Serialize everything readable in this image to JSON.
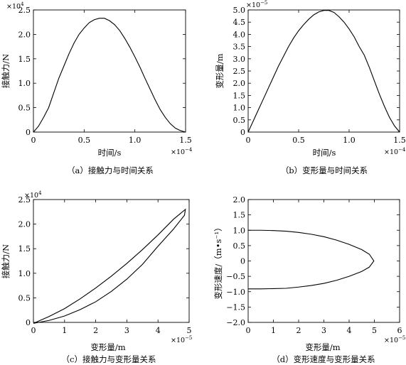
{
  "chart_data": [
    {
      "id": "a",
      "type": "line",
      "caption": "（a）接触力与时间关系",
      "xlabel": "时间/s",
      "ylabel": "接触力/N",
      "x_multiplier": {
        "base": "×10",
        "exp": "−4"
      },
      "y_multiplier": {
        "base": "×10",
        "exp": "4"
      },
      "xlim": [
        0,
        1.5
      ],
      "ylim": [
        0,
        2.5
      ],
      "xticks": [
        0,
        0.5,
        1.0,
        1.5
      ],
      "xtick_labels": [
        "0",
        "0.5",
        "1.0",
        "1.5"
      ],
      "yticks": [
        0,
        0.5,
        1.0,
        1.5,
        2.0,
        2.5
      ],
      "ytick_labels": [
        "0",
        "0.5",
        "1.0",
        "1.5",
        "2.0",
        "2.5"
      ],
      "grid": false,
      "series": [
        {
          "points": [
            [
              0,
              0
            ],
            [
              0.05,
              0.12
            ],
            [
              0.1,
              0.3
            ],
            [
              0.15,
              0.5
            ],
            [
              0.2,
              0.8
            ],
            [
              0.25,
              1.1
            ],
            [
              0.3,
              1.35
            ],
            [
              0.35,
              1.6
            ],
            [
              0.4,
              1.82
            ],
            [
              0.45,
              2.0
            ],
            [
              0.5,
              2.13
            ],
            [
              0.55,
              2.24
            ],
            [
              0.6,
              2.3
            ],
            [
              0.65,
              2.33
            ],
            [
              0.7,
              2.33
            ],
            [
              0.75,
              2.28
            ],
            [
              0.8,
              2.2
            ],
            [
              0.85,
              2.08
            ],
            [
              0.9,
              1.92
            ],
            [
              0.95,
              1.74
            ],
            [
              1.0,
              1.54
            ],
            [
              1.05,
              1.33
            ],
            [
              1.1,
              1.1
            ],
            [
              1.15,
              0.88
            ],
            [
              1.2,
              0.66
            ],
            [
              1.25,
              0.46
            ],
            [
              1.3,
              0.3
            ],
            [
              1.35,
              0.17
            ],
            [
              1.4,
              0.08
            ],
            [
              1.45,
              0.03
            ],
            [
              1.5,
              0
            ]
          ]
        }
      ]
    },
    {
      "id": "b",
      "type": "line",
      "caption": "（b）变形量与时间关系",
      "xlabel": "时间/s",
      "ylabel": "变形量/m",
      "x_multiplier": {
        "base": "×10",
        "exp": "−4"
      },
      "y_multiplier": {
        "base": "×10",
        "exp": "−5"
      },
      "xlim": [
        0,
        1.5
      ],
      "ylim": [
        0,
        5.0
      ],
      "xticks": [
        0,
        0.5,
        1.0,
        1.5
      ],
      "xtick_labels": [
        "0",
        "0.5",
        "1.0",
        "1.5"
      ],
      "yticks": [
        0,
        0.5,
        1.0,
        1.5,
        2.0,
        2.5,
        3.0,
        3.5,
        4.0,
        4.5,
        5.0
      ],
      "ytick_labels": [
        "0",
        "0.5",
        "1.0",
        "1.5",
        "2.0",
        "2.5",
        "3.0",
        "3.5",
        "4.0",
        "4.5",
        "5.0"
      ],
      "grid": false,
      "series": [
        {
          "points": [
            [
              0,
              0
            ],
            [
              0.05,
              0.45
            ],
            [
              0.1,
              0.9
            ],
            [
              0.15,
              1.35
            ],
            [
              0.2,
              1.8
            ],
            [
              0.25,
              2.25
            ],
            [
              0.3,
              2.7
            ],
            [
              0.35,
              3.1
            ],
            [
              0.4,
              3.5
            ],
            [
              0.45,
              3.85
            ],
            [
              0.5,
              4.15
            ],
            [
              0.55,
              4.4
            ],
            [
              0.6,
              4.62
            ],
            [
              0.65,
              4.8
            ],
            [
              0.7,
              4.92
            ],
            [
              0.75,
              4.98
            ],
            [
              0.8,
              4.98
            ],
            [
              0.85,
              4.9
            ],
            [
              0.9,
              4.72
            ],
            [
              0.95,
              4.5
            ],
            [
              1.0,
              4.22
            ],
            [
              1.05,
              3.9
            ],
            [
              1.1,
              3.5
            ],
            [
              1.15,
              3.15
            ],
            [
              1.2,
              2.65
            ],
            [
              1.25,
              2.1
            ],
            [
              1.3,
              1.55
            ],
            [
              1.35,
              1.05
            ],
            [
              1.4,
              0.6
            ],
            [
              1.45,
              0.25
            ],
            [
              1.5,
              0
            ]
          ]
        }
      ]
    },
    {
      "id": "c",
      "type": "line",
      "caption": "（c）接触力与变形量关系",
      "xlabel": "变形量/m",
      "ylabel": "接触力/N",
      "x_multiplier": {
        "base": "×10",
        "exp": "−5"
      },
      "y_multiplier": {
        "base": "×10",
        "exp": "4"
      },
      "xlim": [
        0,
        5
      ],
      "ylim": [
        0,
        2.5
      ],
      "xticks": [
        0,
        1,
        2,
        3,
        4,
        5
      ],
      "xtick_labels": [
        "0",
        "1",
        "2",
        "3",
        "4",
        "5"
      ],
      "yticks": [
        0,
        0.5,
        1.0,
        1.5,
        2.0,
        2.5
      ],
      "ytick_labels": [
        "0",
        "0.5",
        "1.0",
        "1.5",
        "2.0",
        "2.5"
      ],
      "grid": false,
      "series": [
        {
          "points": [
            [
              0,
              -0.02
            ],
            [
              0.5,
              0.12
            ],
            [
              1,
              0.28
            ],
            [
              1.5,
              0.48
            ],
            [
              2,
              0.7
            ],
            [
              2.5,
              0.94
            ],
            [
              3,
              1.2
            ],
            [
              3.5,
              1.48
            ],
            [
              4,
              1.78
            ],
            [
              4.5,
              2.1
            ],
            [
              4.88,
              2.3
            ],
            [
              4.85,
              2.18
            ],
            [
              4.5,
              1.9
            ],
            [
              4,
              1.55
            ],
            [
              3.5,
              1.18
            ],
            [
              3,
              0.88
            ],
            [
              2.5,
              0.63
            ],
            [
              2,
              0.42
            ],
            [
              1.5,
              0.26
            ],
            [
              1,
              0.13
            ],
            [
              0.5,
              0.04
            ],
            [
              0,
              -0.02
            ]
          ]
        }
      ]
    },
    {
      "id": "d",
      "type": "line",
      "caption": "（d）变形速度与变形量关系",
      "xlabel": "变形量/m",
      "ylabel": "变形速度/（m•s⁻¹）",
      "x_multiplier": {
        "base": "×10",
        "exp": "−5"
      },
      "xlim": [
        0,
        6
      ],
      "ylim": [
        -2.0,
        2.0
      ],
      "xticks": [
        0,
        1,
        2,
        3,
        4,
        5,
        6
      ],
      "xtick_labels": [
        "0",
        "1",
        "2",
        "3",
        "4",
        "5",
        "6"
      ],
      "yticks": [
        -2.0,
        -1.5,
        -1.0,
        -0.5,
        0,
        0.5,
        1.0,
        1.5,
        2.0
      ],
      "ytick_labels": [
        "−2.0",
        "−1.5",
        "−1.0",
        "−0.5",
        "0",
        "0.5",
        "1.0",
        "1.5",
        "2.0"
      ],
      "grid": false,
      "series": [
        {
          "points": [
            [
              0,
              1.0
            ],
            [
              0.5,
              1.0
            ],
            [
              1,
              0.99
            ],
            [
              1.5,
              0.97
            ],
            [
              2,
              0.93
            ],
            [
              2.5,
              0.87
            ],
            [
              3,
              0.79
            ],
            [
              3.5,
              0.68
            ],
            [
              4,
              0.54
            ],
            [
              4.5,
              0.37
            ],
            [
              4.8,
              0.22
            ],
            [
              4.98,
              0
            ],
            [
              4.8,
              -0.2
            ],
            [
              4.5,
              -0.34
            ],
            [
              4,
              -0.5
            ],
            [
              3.5,
              -0.63
            ],
            [
              3,
              -0.73
            ],
            [
              2.5,
              -0.8
            ],
            [
              2,
              -0.85
            ],
            [
              1.5,
              -0.89
            ],
            [
              1,
              -0.9
            ],
            [
              0.5,
              -0.91
            ],
            [
              0,
              -0.91
            ]
          ]
        }
      ]
    }
  ]
}
